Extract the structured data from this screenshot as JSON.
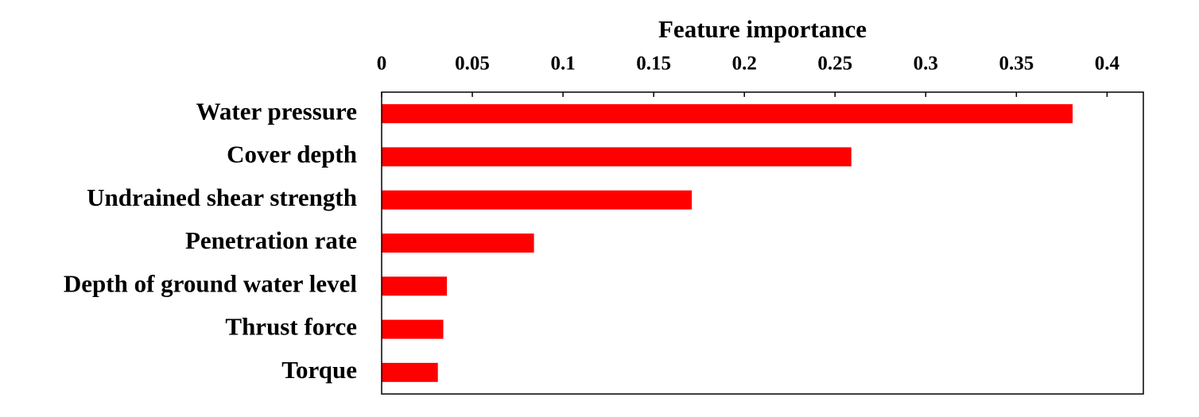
{
  "chart_data": {
    "type": "bar",
    "orientation": "horizontal",
    "x_label": "Feature importance",
    "categories": [
      "Water pressure",
      "Cover depth",
      "Undrained shear strength",
      "Penetration rate",
      "Depth of ground water level",
      "Thrust force",
      "Torque"
    ],
    "values": [
      0.381,
      0.259,
      0.171,
      0.084,
      0.036,
      0.034,
      0.031
    ],
    "color": "#ff0000",
    "xlim": [
      0,
      0.42
    ],
    "xticks": [
      0,
      0.05,
      0.1,
      0.15,
      0.2,
      0.25,
      0.3,
      0.35,
      0.4
    ]
  }
}
